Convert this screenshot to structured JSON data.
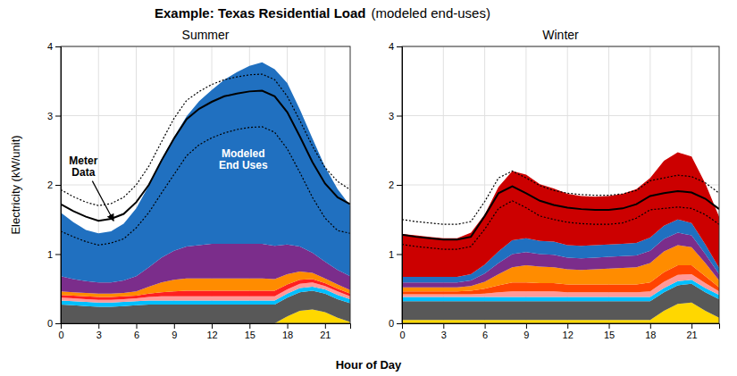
{
  "title": "Example: Texas Residential Load",
  "subtitle": "(modeled end-uses)",
  "xlabel": "Hour of Day",
  "chart_data": [
    {
      "type": "area",
      "stacked": true,
      "grid": true,
      "title": "Summer",
      "ylabel": "Electricity (kW/unit)",
      "x": [
        0,
        1,
        2,
        3,
        4,
        5,
        6,
        7,
        8,
        9,
        10,
        11,
        12,
        13,
        14,
        15,
        16,
        17,
        18,
        19,
        20,
        21,
        22,
        23
      ],
      "xlim": [
        0,
        23
      ],
      "xticks": [
        0,
        3,
        6,
        9,
        12,
        15,
        18,
        21
      ],
      "ylim": [
        0,
        4
      ],
      "yticks": [
        0,
        1,
        2,
        3,
        4
      ],
      "annotations": [
        {
          "text": "Meter\nData",
          "color": "black"
        },
        {
          "text": "Modeled\nEnd Uses",
          "color": "white"
        }
      ],
      "series": [
        {
          "color": "#FFD700",
          "values": [
            0.0,
            0.0,
            0.0,
            0.0,
            0.0,
            0.0,
            0.0,
            0.0,
            0.0,
            0.0,
            0.0,
            0.0,
            0.0,
            0.0,
            0.0,
            0.0,
            0.0,
            0.0,
            0.1,
            0.18,
            0.2,
            0.16,
            0.08,
            0.02
          ]
        },
        {
          "color": "#585858",
          "values": [
            0.27,
            0.26,
            0.25,
            0.24,
            0.24,
            0.25,
            0.26,
            0.27,
            0.27,
            0.27,
            0.27,
            0.27,
            0.27,
            0.27,
            0.27,
            0.27,
            0.27,
            0.27,
            0.27,
            0.27,
            0.27,
            0.27,
            0.27,
            0.27
          ]
        },
        {
          "color": "#00BFFF",
          "values": [
            0.06,
            0.06,
            0.06,
            0.06,
            0.06,
            0.06,
            0.06,
            0.06,
            0.06,
            0.06,
            0.06,
            0.06,
            0.06,
            0.06,
            0.06,
            0.06,
            0.06,
            0.06,
            0.06,
            0.06,
            0.06,
            0.06,
            0.06,
            0.06
          ]
        },
        {
          "color": "#FF9999",
          "values": [
            0.04,
            0.04,
            0.04,
            0.04,
            0.04,
            0.04,
            0.04,
            0.05,
            0.06,
            0.06,
            0.06,
            0.06,
            0.06,
            0.06,
            0.06,
            0.06,
            0.06,
            0.06,
            0.06,
            0.06,
            0.06,
            0.05,
            0.05,
            0.04
          ]
        },
        {
          "color": "#FF2020",
          "values": [
            0.04,
            0.04,
            0.04,
            0.04,
            0.04,
            0.04,
            0.04,
            0.05,
            0.06,
            0.07,
            0.08,
            0.08,
            0.08,
            0.08,
            0.08,
            0.08,
            0.08,
            0.08,
            0.07,
            0.06,
            0.05,
            0.04,
            0.04,
            0.04
          ]
        },
        {
          "color": "#FF8C00",
          "values": [
            0.05,
            0.05,
            0.05,
            0.05,
            0.05,
            0.05,
            0.06,
            0.1,
            0.14,
            0.17,
            0.18,
            0.18,
            0.18,
            0.18,
            0.18,
            0.18,
            0.18,
            0.17,
            0.15,
            0.12,
            0.09,
            0.07,
            0.06,
            0.05
          ]
        },
        {
          "color": "#7B2D8B",
          "values": [
            0.22,
            0.19,
            0.17,
            0.16,
            0.16,
            0.18,
            0.22,
            0.28,
            0.36,
            0.42,
            0.46,
            0.48,
            0.5,
            0.5,
            0.5,
            0.5,
            0.5,
            0.48,
            0.43,
            0.36,
            0.29,
            0.24,
            0.21,
            0.2
          ]
        },
        {
          "color": "#2070C0",
          "values": [
            0.92,
            0.82,
            0.74,
            0.71,
            0.74,
            0.82,
            0.98,
            1.18,
            1.42,
            1.64,
            1.88,
            2.08,
            2.22,
            2.37,
            2.48,
            2.57,
            2.62,
            2.55,
            2.33,
            1.98,
            1.65,
            1.37,
            1.17,
            1.02
          ]
        },
        {
          "type": "line",
          "color": "black",
          "line_style": "solid",
          "values": [
            1.72,
            1.62,
            1.54,
            1.48,
            1.51,
            1.58,
            1.75,
            2.0,
            2.35,
            2.67,
            2.95,
            3.1,
            3.2,
            3.28,
            3.32,
            3.35,
            3.36,
            3.28,
            3.05,
            2.7,
            2.33,
            2.02,
            1.82,
            1.72
          ]
        },
        {
          "type": "line",
          "color": "black",
          "line_style": "dotted",
          "values": [
            1.93,
            1.83,
            1.75,
            1.7,
            1.73,
            1.82,
            2.0,
            2.27,
            2.62,
            2.96,
            3.22,
            3.35,
            3.45,
            3.52,
            3.56,
            3.59,
            3.6,
            3.52,
            3.28,
            2.93,
            2.56,
            2.25,
            2.05,
            1.93
          ]
        },
        {
          "type": "line",
          "color": "black",
          "line_style": "dotted",
          "values": [
            1.33,
            1.25,
            1.18,
            1.13,
            1.16,
            1.22,
            1.38,
            1.6,
            1.88,
            2.15,
            2.42,
            2.58,
            2.68,
            2.75,
            2.8,
            2.83,
            2.84,
            2.76,
            2.52,
            2.18,
            1.82,
            1.52,
            1.34,
            1.3
          ]
        }
      ]
    },
    {
      "type": "area",
      "stacked": true,
      "grid": true,
      "title": "Winter",
      "x": [
        0,
        1,
        2,
        3,
        4,
        5,
        6,
        7,
        8,
        9,
        10,
        11,
        12,
        13,
        14,
        15,
        16,
        17,
        18,
        19,
        20,
        21,
        22,
        23
      ],
      "xlim": [
        0,
        23
      ],
      "xticks": [
        0,
        3,
        6,
        9,
        12,
        15,
        18,
        21
      ],
      "ylim": [
        0,
        4
      ],
      "yticks": [
        0,
        1,
        2,
        3,
        4
      ],
      "series": [
        {
          "color": "#FFD700",
          "values": [
            0.05,
            0.05,
            0.05,
            0.05,
            0.05,
            0.05,
            0.05,
            0.05,
            0.05,
            0.05,
            0.05,
            0.05,
            0.05,
            0.05,
            0.05,
            0.05,
            0.05,
            0.05,
            0.05,
            0.18,
            0.28,
            0.3,
            0.18,
            0.08
          ]
        },
        {
          "color": "#585858",
          "values": [
            0.27,
            0.27,
            0.27,
            0.27,
            0.27,
            0.27,
            0.27,
            0.27,
            0.27,
            0.27,
            0.27,
            0.27,
            0.27,
            0.27,
            0.27,
            0.27,
            0.27,
            0.27,
            0.27,
            0.27,
            0.27,
            0.27,
            0.27,
            0.27
          ]
        },
        {
          "color": "#00BFFF",
          "values": [
            0.06,
            0.06,
            0.06,
            0.06,
            0.06,
            0.06,
            0.06,
            0.06,
            0.06,
            0.06,
            0.06,
            0.06,
            0.06,
            0.06,
            0.06,
            0.06,
            0.06,
            0.06,
            0.06,
            0.06,
            0.06,
            0.06,
            0.06,
            0.06
          ]
        },
        {
          "color": "#FF9999",
          "values": [
            0.04,
            0.04,
            0.04,
            0.04,
            0.04,
            0.04,
            0.05,
            0.07,
            0.08,
            0.08,
            0.08,
            0.08,
            0.07,
            0.07,
            0.07,
            0.07,
            0.07,
            0.07,
            0.08,
            0.09,
            0.09,
            0.08,
            0.07,
            0.05
          ]
        },
        {
          "color": "#FF4400",
          "values": [
            0.04,
            0.04,
            0.04,
            0.04,
            0.04,
            0.05,
            0.07,
            0.1,
            0.13,
            0.13,
            0.12,
            0.12,
            0.11,
            0.11,
            0.11,
            0.11,
            0.11,
            0.11,
            0.13,
            0.14,
            0.14,
            0.13,
            0.1,
            0.06
          ]
        },
        {
          "color": "#FF8C00",
          "values": [
            0.06,
            0.06,
            0.06,
            0.06,
            0.06,
            0.07,
            0.1,
            0.16,
            0.22,
            0.25,
            0.24,
            0.23,
            0.22,
            0.21,
            0.22,
            0.23,
            0.24,
            0.25,
            0.28,
            0.3,
            0.29,
            0.26,
            0.19,
            0.1
          ]
        },
        {
          "color": "#7B2D8B",
          "values": [
            0.07,
            0.07,
            0.07,
            0.07,
            0.07,
            0.08,
            0.12,
            0.16,
            0.19,
            0.19,
            0.18,
            0.18,
            0.17,
            0.17,
            0.17,
            0.17,
            0.17,
            0.17,
            0.18,
            0.18,
            0.18,
            0.17,
            0.13,
            0.09
          ]
        },
        {
          "color": "#2070C0",
          "values": [
            0.08,
            0.08,
            0.08,
            0.08,
            0.08,
            0.09,
            0.13,
            0.17,
            0.2,
            0.2,
            0.19,
            0.19,
            0.18,
            0.18,
            0.18,
            0.18,
            0.18,
            0.18,
            0.19,
            0.19,
            0.19,
            0.18,
            0.14,
            0.09
          ]
        },
        {
          "color": "#CC0000",
          "values": [
            0.62,
            0.6,
            0.58,
            0.56,
            0.56,
            0.6,
            0.72,
            0.93,
            1.0,
            0.92,
            0.82,
            0.77,
            0.74,
            0.72,
            0.7,
            0.7,
            0.72,
            0.78,
            0.86,
            0.94,
            0.97,
            0.96,
            0.88,
            0.74
          ]
        },
        {
          "type": "line",
          "color": "black",
          "line_style": "solid",
          "values": [
            1.28,
            1.25,
            1.23,
            1.21,
            1.21,
            1.25,
            1.55,
            1.88,
            1.98,
            1.88,
            1.77,
            1.71,
            1.67,
            1.65,
            1.64,
            1.64,
            1.66,
            1.72,
            1.84,
            1.88,
            1.91,
            1.89,
            1.8,
            1.65
          ]
        },
        {
          "type": "line",
          "color": "black",
          "line_style": "dotted",
          "values": [
            1.5,
            1.47,
            1.45,
            1.43,
            1.43,
            1.47,
            1.76,
            2.1,
            2.2,
            2.1,
            1.99,
            1.92,
            1.88,
            1.86,
            1.85,
            1.85,
            1.87,
            1.92,
            2.06,
            2.1,
            2.14,
            2.12,
            2.03,
            1.88
          ]
        },
        {
          "type": "line",
          "color": "black",
          "line_style": "dotted",
          "values": [
            1.14,
            1.11,
            1.09,
            1.07,
            1.07,
            1.11,
            1.36,
            1.66,
            1.77,
            1.67,
            1.55,
            1.5,
            1.46,
            1.44,
            1.43,
            1.43,
            1.45,
            1.52,
            1.64,
            1.66,
            1.68,
            1.66,
            1.57,
            1.43
          ]
        }
      ]
    }
  ]
}
